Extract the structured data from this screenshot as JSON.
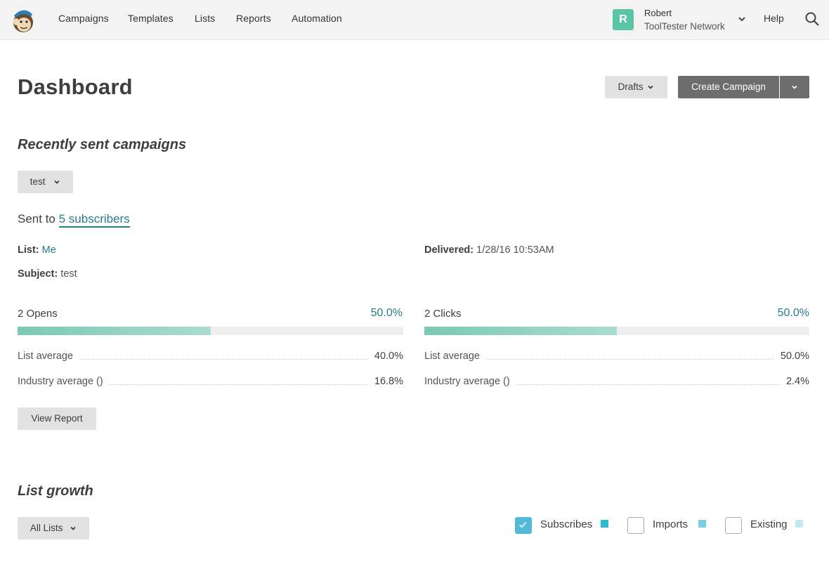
{
  "nav": {
    "items": [
      "Campaigns",
      "Templates",
      "Lists",
      "Reports",
      "Automation"
    ],
    "account": {
      "initial": "R",
      "name": "Robert",
      "org": "ToolTester Network"
    },
    "help": "Help"
  },
  "header": {
    "title": "Dashboard",
    "drafts_label": "Drafts",
    "create_label": "Create Campaign"
  },
  "recent": {
    "title": "Recently sent campaigns",
    "campaign_select": "test",
    "sent_prefix": "Sent to",
    "sent_link": "5 subscribers",
    "list_label": "List:",
    "list_value": "Me",
    "subject_label": "Subject:",
    "subject_value": "test",
    "delivered_label": "Delivered:",
    "delivered_value": "1/28/16 10:53AM",
    "opens": {
      "label": "2 Opens",
      "pct": "50.0%",
      "fill": 0.5,
      "list_avg_label": "List average",
      "list_avg": "40.0%",
      "industry_avg_label": "Industry average ()",
      "industry_avg": "16.8%"
    },
    "clicks": {
      "label": "2 Clicks",
      "pct": "50.0%",
      "fill": 0.5,
      "list_avg_label": "List average",
      "list_avg": "50.0%",
      "industry_avg_label": "Industry average ()",
      "industry_avg": "2.4%"
    },
    "view_report": "View Report"
  },
  "growth": {
    "title": "List growth",
    "list_select": "All Lists",
    "legend": [
      {
        "label": "Subscribes",
        "checked": true,
        "color": "#2bbcd4"
      },
      {
        "label": "Imports",
        "checked": false,
        "color": "#7dd0e0"
      },
      {
        "label": "Existing",
        "checked": false,
        "color": "#c5e9f1"
      }
    ]
  }
}
